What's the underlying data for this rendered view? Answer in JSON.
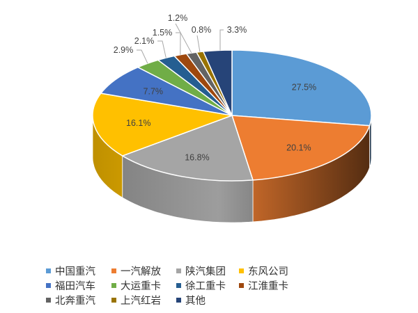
{
  "chart_data": {
    "type": "pie",
    "style": "3d",
    "start": "12 o'clock, clockwise",
    "legend_position": "bottom",
    "categories": [
      "中国重汽",
      "一汽解放",
      "陕汽集团",
      "东风公司",
      "福田汽车",
      "大运重卡",
      "徐工重卡",
      "江淮重卡",
      "北奔重汽",
      "上汽红岩",
      "其他"
    ],
    "values": [
      27.5,
      20.1,
      16.8,
      16.1,
      7.7,
      2.9,
      2.1,
      1.5,
      1.2,
      0.8,
      3.3
    ],
    "labels": [
      "27.5%",
      "20.1%",
      "16.8%",
      "16.1%",
      "7.7%",
      "2.9%",
      "2.1%",
      "1.5%",
      "1.2%",
      "0.8%",
      "3.3%"
    ],
    "colors": [
      "#5B9BD5",
      "#ED7D31",
      "#A5A5A5",
      "#FFC000",
      "#4472C4",
      "#70AD47",
      "#255E91",
      "#9E480E",
      "#636363",
      "#997300",
      "#264478"
    ]
  }
}
